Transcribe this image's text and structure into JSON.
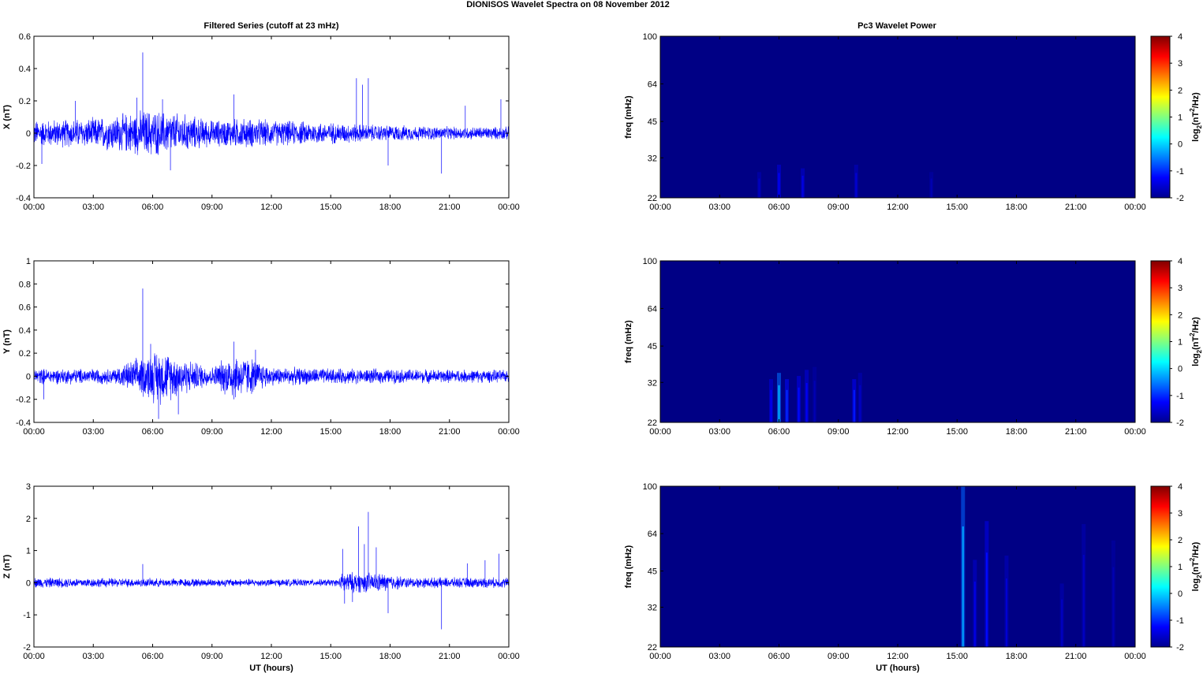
{
  "figure": {
    "title": "DIONISOS Wavelet Spectra on 08 November  2012",
    "left_column_title": "Filtered Series (cutoff at 23 mHz)",
    "right_column_title": "Pc3 Wavelet Power",
    "xlabel": "UT (hours)"
  },
  "chart_data": [
    {
      "type": "line",
      "ylabel": "X (nT)",
      "xlabel": "",
      "xlim_hours": [
        0,
        24
      ],
      "xticks": [
        "00:00",
        "03:00",
        "06:00",
        "09:00",
        "12:00",
        "15:00",
        "18:00",
        "21:00",
        "00:00"
      ],
      "ylim": [
        -0.4,
        0.6
      ],
      "yticks": [
        "-0.4",
        "-0.2",
        "0",
        "0.2",
        "0.4",
        "0.6"
      ],
      "ytick_values": [
        -0.4,
        -0.2,
        0,
        0.2,
        0.4,
        0.6
      ],
      "series": [
        {
          "color": "#0000ff",
          "envelope": [
            {
              "t": 0,
              "amp": 0.06
            },
            {
              "t": 3,
              "amp": 0.07
            },
            {
              "t": 4.5,
              "amp": 0.09
            },
            {
              "t": 5.8,
              "amp": 0.11
            },
            {
              "t": 7.5,
              "amp": 0.09
            },
            {
              "t": 9,
              "amp": 0.06
            },
            {
              "t": 10.5,
              "amp": 0.07
            },
            {
              "t": 12,
              "amp": 0.06
            },
            {
              "t": 15,
              "amp": 0.05
            },
            {
              "t": 17,
              "amp": 0.04
            },
            {
              "t": 21,
              "amp": 0.03
            },
            {
              "t": 24,
              "amp": 0.03
            }
          ],
          "spikes": [
            {
              "t": 5.5,
              "v": 0.5
            },
            {
              "t": 5.2,
              "v": 0.22
            },
            {
              "t": 6.5,
              "v": 0.21
            },
            {
              "t": 10.1,
              "v": 0.24
            },
            {
              "t": 16.3,
              "v": 0.34
            },
            {
              "t": 16.9,
              "v": 0.34
            },
            {
              "t": 16.6,
              "v": 0.3
            },
            {
              "t": 20.6,
              "v": -0.25
            },
            {
              "t": 21.8,
              "v": 0.17
            },
            {
              "t": 23.6,
              "v": 0.21
            },
            {
              "t": 0.4,
              "v": -0.19
            },
            {
              "t": 17.9,
              "v": -0.2
            },
            {
              "t": 2.1,
              "v": 0.2
            },
            {
              "t": 6.9,
              "v": -0.23
            }
          ]
        }
      ]
    },
    {
      "type": "line",
      "ylabel": "Y (nT)",
      "xlabel": "",
      "xlim_hours": [
        0,
        24
      ],
      "xticks": [
        "00:00",
        "03:00",
        "06:00",
        "09:00",
        "12:00",
        "15:00",
        "18:00",
        "21:00",
        "00:00"
      ],
      "ylim": [
        -0.4,
        1
      ],
      "yticks": [
        "-0.4",
        "-0.2",
        "0",
        "0.2",
        "0.4",
        "0.6",
        "0.8",
        "1"
      ],
      "ytick_values": [
        -0.4,
        -0.2,
        0,
        0.2,
        0.4,
        0.6,
        0.8,
        1
      ],
      "series": [
        {
          "color": "#0000ff",
          "envelope": [
            {
              "t": 0,
              "amp": 0.05
            },
            {
              "t": 4,
              "amp": 0.05
            },
            {
              "t": 5.3,
              "amp": 0.12
            },
            {
              "t": 6.3,
              "amp": 0.18
            },
            {
              "t": 7.5,
              "amp": 0.12
            },
            {
              "t": 9,
              "amp": 0.06
            },
            {
              "t": 10,
              "amp": 0.15
            },
            {
              "t": 11,
              "amp": 0.12
            },
            {
              "t": 12,
              "amp": 0.06
            },
            {
              "t": 15,
              "amp": 0.05
            },
            {
              "t": 24,
              "amp": 0.04
            }
          ],
          "spikes": [
            {
              "t": 5.5,
              "v": 0.76
            },
            {
              "t": 6.3,
              "v": -0.37
            },
            {
              "t": 7.3,
              "v": -0.33
            },
            {
              "t": 10.1,
              "v": 0.3
            },
            {
              "t": 11.2,
              "v": 0.23
            },
            {
              "t": 5.9,
              "v": 0.28
            },
            {
              "t": 0.5,
              "v": -0.2
            },
            {
              "t": 10.1,
              "v": -0.2
            }
          ]
        }
      ]
    },
    {
      "type": "line",
      "ylabel": "Z (nT)",
      "xlabel": "UT (hours)",
      "xlim_hours": [
        0,
        24
      ],
      "xticks": [
        "00:00",
        "03:00",
        "06:00",
        "09:00",
        "12:00",
        "15:00",
        "18:00",
        "21:00",
        "00:00"
      ],
      "ylim": [
        -2,
        3
      ],
      "yticks": [
        "-2",
        "-1",
        "0",
        "1",
        "2",
        "3"
      ],
      "ytick_values": [
        -2,
        -1,
        0,
        1,
        2,
        3
      ],
      "series": [
        {
          "color": "#0000ff",
          "envelope": [
            {
              "t": 0,
              "amp": 0.12
            },
            {
              "t": 6,
              "amp": 0.1
            },
            {
              "t": 15.4,
              "amp": 0.08
            },
            {
              "t": 15.6,
              "amp": 0.25
            },
            {
              "t": 17.5,
              "amp": 0.22
            },
            {
              "t": 19,
              "amp": 0.12
            },
            {
              "t": 24,
              "amp": 0.12
            }
          ],
          "spikes": [
            {
              "t": 5.5,
              "v": 0.58
            },
            {
              "t": 15.6,
              "v": 1.05
            },
            {
              "t": 15.7,
              "v": -0.65
            },
            {
              "t": 16.4,
              "v": 1.75
            },
            {
              "t": 16.9,
              "v": 2.2
            },
            {
              "t": 16.7,
              "v": 1.2
            },
            {
              "t": 17.3,
              "v": 1.1
            },
            {
              "t": 17.9,
              "v": -0.95
            },
            {
              "t": 20.6,
              "v": -1.45
            },
            {
              "t": 23.5,
              "v": 0.9
            },
            {
              "t": 21.9,
              "v": 0.6
            },
            {
              "t": 16.1,
              "v": -0.6
            },
            {
              "t": 22.8,
              "v": 0.7
            }
          ]
        }
      ]
    },
    {
      "type": "heatmap",
      "ylabel": "freq (mHz)",
      "xlabel": "",
      "xlim_hours": [
        0,
        24
      ],
      "xticks": [
        "00:00",
        "03:00",
        "06:00",
        "09:00",
        "12:00",
        "15:00",
        "18:00",
        "21:00",
        "00:00"
      ],
      "ylim": [
        22,
        100
      ],
      "yscale": "log",
      "yticks": [
        "22",
        "32",
        "45",
        "64",
        "100"
      ],
      "ytick_values": [
        22,
        32,
        45,
        64,
        100
      ],
      "background_level": -2,
      "colorbar": {
        "label": "log2(nT2/Hz)",
        "label_base": "log",
        "label_sub": "2",
        "label_open": "(nT",
        "label_sup": "2",
        "label_close": "/Hz)",
        "ticks": [
          "4",
          "3",
          "2",
          "1",
          "0",
          "-1",
          "-2"
        ],
        "range": [
          -2,
          4
        ]
      },
      "events": [
        {
          "t": 5.0,
          "f_top": 28,
          "level": -1.6
        },
        {
          "t": 6.0,
          "f_top": 30,
          "level": -1.3
        },
        {
          "t": 7.2,
          "f_top": 29,
          "level": -1.4
        },
        {
          "t": 9.9,
          "f_top": 30,
          "level": -1.5
        },
        {
          "t": 13.7,
          "f_top": 28,
          "level": -1.7
        }
      ]
    },
    {
      "type": "heatmap",
      "ylabel": "freq (mHz)",
      "xlabel": "",
      "xlim_hours": [
        0,
        24
      ],
      "xticks": [
        "00:00",
        "03:00",
        "06:00",
        "09:00",
        "12:00",
        "15:00",
        "18:00",
        "21:00",
        "00:00"
      ],
      "ylim": [
        22,
        100
      ],
      "yscale": "log",
      "yticks": [
        "22",
        "32",
        "45",
        "64",
        "100"
      ],
      "ytick_values": [
        22,
        32,
        45,
        64,
        100
      ],
      "background_level": -2,
      "colorbar": {
        "label": "log2(nT2/Hz)",
        "label_base": "log",
        "label_sub": "2",
        "label_open": "(nT",
        "label_sup": "2",
        "label_close": "/Hz)",
        "ticks": [
          "4",
          "3",
          "2",
          "1",
          "0",
          "-1",
          "-2"
        ],
        "range": [
          -2,
          4
        ]
      },
      "events": [
        {
          "t": 5.6,
          "f_top": 33,
          "level": -1.3
        },
        {
          "t": 6.0,
          "f_top": 35,
          "level": -0.2
        },
        {
          "t": 6.4,
          "f_top": 33,
          "level": -1.0
        },
        {
          "t": 7.0,
          "f_top": 34,
          "level": -1.2
        },
        {
          "t": 7.4,
          "f_top": 36,
          "level": -1.3
        },
        {
          "t": 7.8,
          "f_top": 37,
          "level": -1.7
        },
        {
          "t": 9.8,
          "f_top": 33,
          "level": -1.1
        },
        {
          "t": 10.1,
          "f_top": 35,
          "level": -1.6
        }
      ]
    },
    {
      "type": "heatmap",
      "ylabel": "freq (mHz)",
      "xlabel": "UT (hours)",
      "xlim_hours": [
        0,
        24
      ],
      "xticks": [
        "00:00",
        "03:00",
        "06:00",
        "09:00",
        "12:00",
        "15:00",
        "18:00",
        "21:00",
        "00:00"
      ],
      "ylim": [
        22,
        100
      ],
      "yscale": "log",
      "yticks": [
        "22",
        "32",
        "45",
        "64",
        "100"
      ],
      "ytick_values": [
        22,
        32,
        45,
        64,
        100
      ],
      "background_level": -2,
      "colorbar": {
        "label": "log2(nT2/Hz)",
        "label_base": "log",
        "label_sub": "2",
        "label_open": "(nT",
        "label_sup": "2",
        "label_close": "/Hz)",
        "ticks": [
          "4",
          "3",
          "2",
          "1",
          "0",
          "-1",
          "-2"
        ],
        "range": [
          -2,
          4
        ]
      },
      "events": [
        {
          "t": 15.3,
          "f_top": 100,
          "level": -0.3
        },
        {
          "t": 15.9,
          "f_top": 50,
          "level": -1.4
        },
        {
          "t": 16.5,
          "f_top": 72,
          "level": -1.2
        },
        {
          "t": 17.5,
          "f_top": 52,
          "level": -1.5
        },
        {
          "t": 20.3,
          "f_top": 40,
          "level": -1.6
        },
        {
          "t": 21.4,
          "f_top": 70,
          "level": -1.6
        },
        {
          "t": 22.9,
          "f_top": 60,
          "level": -1.7
        }
      ]
    }
  ]
}
